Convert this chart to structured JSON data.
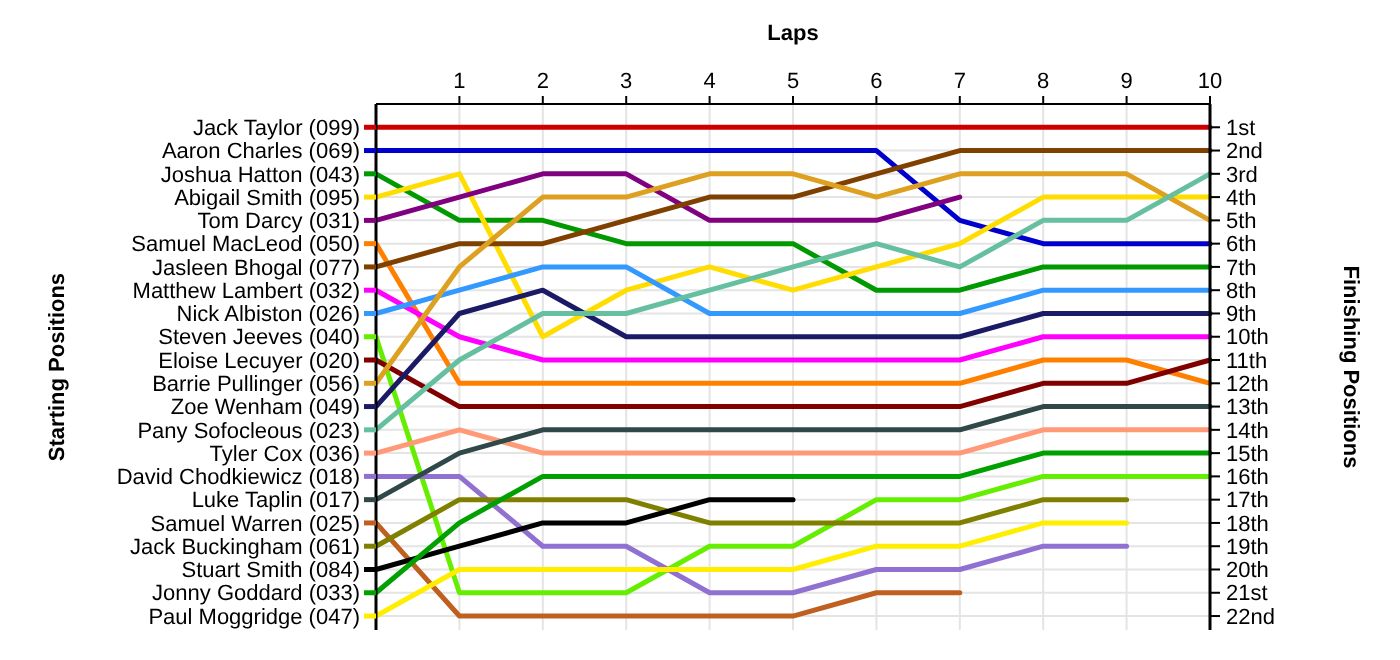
{
  "chart_data": {
    "type": "line",
    "xlabel": "Laps",
    "legend_title": "Starting Positions",
    "ylabel": "Finishing Positions",
    "legend": "left",
    "x": [
      0,
      1,
      2,
      3,
      4,
      5,
      6,
      7,
      8,
      9,
      10
    ],
    "xlim": [
      0,
      10
    ],
    "xticks": [
      1,
      2,
      3,
      4,
      5,
      6,
      7,
      8,
      9,
      10
    ],
    "ylim": [
      22.6,
      0
    ],
    "yticks": [
      {
        "value": 1,
        "label": "1st"
      },
      {
        "value": 2,
        "label": "2nd"
      },
      {
        "value": 3,
        "label": "3rd"
      },
      {
        "value": 4,
        "label": "4th"
      },
      {
        "value": 5,
        "label": "5th"
      },
      {
        "value": 6,
        "label": "6th"
      },
      {
        "value": 7,
        "label": "7th"
      },
      {
        "value": 8,
        "label": "8th"
      },
      {
        "value": 9,
        "label": "9th"
      },
      {
        "value": 10,
        "label": "10th"
      },
      {
        "value": 11,
        "label": "11th"
      },
      {
        "value": 12,
        "label": "12th"
      },
      {
        "value": 13,
        "label": "13th"
      },
      {
        "value": 14,
        "label": "14th"
      },
      {
        "value": 15,
        "label": "15th"
      },
      {
        "value": 16,
        "label": "16th"
      },
      {
        "value": 17,
        "label": "17th"
      },
      {
        "value": 18,
        "label": "18th"
      },
      {
        "value": 19,
        "label": "19th"
      },
      {
        "value": 20,
        "label": "20th"
      },
      {
        "value": 21,
        "label": "21st"
      },
      {
        "value": 22,
        "label": "22nd"
      }
    ],
    "grid": true,
    "marker": "none",
    "line_style": "solid",
    "series": [
      {
        "name": "Jack Taylor (099)",
        "color": "#cc0000",
        "values": [
          1,
          1,
          1,
          1,
          1,
          1,
          1,
          1,
          1,
          1,
          1
        ]
      },
      {
        "name": "Aaron Charles (069)",
        "color": "#0000cc",
        "values": [
          2,
          2,
          2,
          2,
          2,
          2,
          2,
          5,
          6,
          6,
          6
        ]
      },
      {
        "name": "Joshua Hatton (043)",
        "color": "#009900",
        "values": [
          3,
          5,
          5,
          6,
          6,
          6,
          8,
          8,
          7,
          7,
          7
        ]
      },
      {
        "name": "Abigail Smith (095)",
        "color": "#ffdd00",
        "values": [
          4,
          3,
          10,
          8,
          7,
          8,
          7,
          6,
          4,
          4,
          4
        ]
      },
      {
        "name": "Tom Darcy (031)",
        "color": "#800080",
        "values": [
          5,
          4,
          3,
          3,
          5,
          5,
          5,
          4,
          null,
          null,
          null
        ]
      },
      {
        "name": "Samuel MacLeod (050)",
        "color": "#ff8000",
        "values": [
          6,
          12,
          12,
          12,
          12,
          12,
          12,
          12,
          11,
          11,
          12
        ]
      },
      {
        "name": "Jasleen Bhogal (077)",
        "color": "#804000",
        "values": [
          7,
          6,
          6,
          5,
          4,
          4,
          3,
          2,
          2,
          2,
          2
        ]
      },
      {
        "name": "Matthew Lambert (032)",
        "color": "#ff00ff",
        "values": [
          8,
          10,
          11,
          11,
          11,
          11,
          11,
          11,
          10,
          10,
          10
        ]
      },
      {
        "name": "Nick Albiston (026)",
        "color": "#3399ff",
        "values": [
          9,
          8,
          7,
          7,
          9,
          9,
          9,
          9,
          8,
          8,
          8
        ]
      },
      {
        "name": "Steven Jeeves (040)",
        "color": "#66ee00",
        "values": [
          10,
          21,
          21,
          21,
          19,
          19,
          17,
          17,
          16,
          16,
          16
        ]
      },
      {
        "name": "Eloise Lecuyer (020)",
        "color": "#800000",
        "values": [
          11,
          13,
          13,
          13,
          13,
          13,
          13,
          13,
          12,
          12,
          11
        ]
      },
      {
        "name": "Barrie Pullinger (056)",
        "color": "#dda020",
        "values": [
          12,
          7,
          4,
          4,
          3,
          3,
          4,
          3,
          3,
          3,
          5
        ]
      },
      {
        "name": "Zoe Wenham (049)",
        "color": "#1a1a66",
        "values": [
          13,
          9,
          8,
          10,
          10,
          10,
          10,
          10,
          9,
          9,
          9
        ]
      },
      {
        "name": "Pany Sofocleous (023)",
        "color": "#66c0a0",
        "values": [
          14,
          11,
          9,
          9,
          8,
          7,
          6,
          7,
          5,
          5,
          3
        ]
      },
      {
        "name": "Tyler Cox (036)",
        "color": "#ff9977",
        "values": [
          15,
          14,
          15,
          15,
          15,
          15,
          15,
          15,
          14,
          14,
          14
        ]
      },
      {
        "name": "David Chodkiewicz (018)",
        "color": "#9070d0",
        "values": [
          16,
          16,
          19,
          19,
          21,
          21,
          20,
          20,
          19,
          19,
          null
        ]
      },
      {
        "name": "Luke Taplin (017)",
        "color": "#304848",
        "values": [
          17,
          15,
          14,
          14,
          14,
          14,
          14,
          14,
          13,
          13,
          13
        ]
      },
      {
        "name": "Samuel Warren (025)",
        "color": "#c06020",
        "values": [
          18,
          22,
          22,
          22,
          22,
          22,
          21,
          21,
          null,
          null,
          null
        ]
      },
      {
        "name": "Jack Buckingham (061)",
        "color": "#808000",
        "values": [
          19,
          17,
          17,
          17,
          18,
          18,
          18,
          18,
          17,
          17,
          null
        ]
      },
      {
        "name": "Stuart Smith (084)",
        "color": "#000000",
        "values": [
          20,
          19,
          18,
          18,
          17,
          17,
          null,
          null,
          null,
          null,
          null
        ]
      },
      {
        "name": "Jonny Goddard (033)",
        "color": "#00a000",
        "values": [
          21,
          18,
          16,
          16,
          16,
          16,
          16,
          16,
          15,
          15,
          15
        ]
      },
      {
        "name": "Paul Moggridge (047)",
        "color": "#ffee00",
        "values": [
          22,
          20,
          20,
          20,
          20,
          20,
          19,
          19,
          18,
          18,
          null
        ]
      }
    ]
  }
}
